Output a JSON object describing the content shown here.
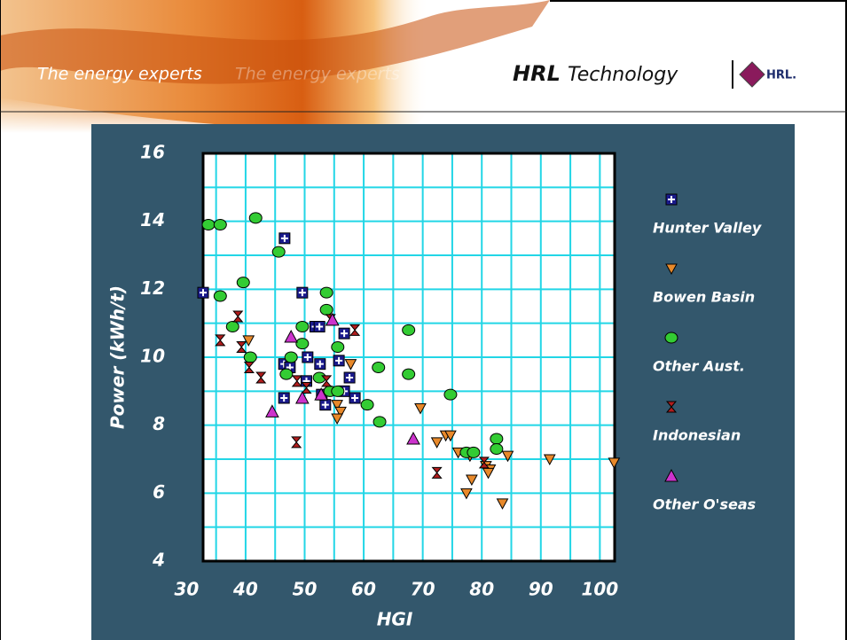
{
  "header": {
    "slogan": "The energy experts",
    "slogan_echo": "The energy experts",
    "brand": "HRL",
    "brand_suffix": "Technology",
    "logo": "HRL."
  },
  "chart_data": {
    "type": "scatter",
    "xlabel": "HGI",
    "ylabel": "Power (kWh/t)",
    "xlim": [
      32.8,
      102.5
    ],
    "ylim": [
      4,
      16
    ],
    "xticks": [
      30,
      40,
      50,
      60,
      70,
      80,
      90,
      100
    ],
    "yticks": [
      4,
      6,
      8,
      10,
      12,
      14,
      16
    ],
    "xgrid": [
      35,
      40,
      45,
      50,
      55,
      60,
      65,
      70,
      75,
      80,
      85,
      90,
      95,
      100
    ],
    "ygrid": [
      5,
      6,
      7,
      8,
      9,
      10,
      11,
      12,
      13,
      14,
      15
    ],
    "legend": "right",
    "series": [
      {
        "name": "Hunter Valley",
        "color": "#1a1a8c",
        "marker": "square",
        "x": [
          32.8,
          46.6,
          49.6,
          51.8,
          52.5,
          56.7,
          46.5,
          47.5,
          50.5,
          52.6,
          55.8,
          57.6,
          50.3,
          46.5,
          53.5,
          56.7,
          58.5,
          52.9
        ],
        "values": [
          11.9,
          13.5,
          11.9,
          10.9,
          10.9,
          10.7,
          9.8,
          9.7,
          10.0,
          9.8,
          9.9,
          9.4,
          9.3,
          8.8,
          8.6,
          9.0,
          8.8,
          8.9
        ]
      },
      {
        "name": "Bowen Basin",
        "color": "#e8892a",
        "marker": "triangle-down",
        "x": [
          40.5,
          69.6,
          72.4,
          73.9,
          74.7,
          76.0,
          78.0,
          78.3,
          77.4,
          80.7,
          81.4,
          81.1,
          84.4,
          83.5,
          91.5,
          102.4,
          55.5,
          56.1,
          55.5,
          57.8
        ],
        "values": [
          10.5,
          8.5,
          7.5,
          7.7,
          7.7,
          7.2,
          7.1,
          6.4,
          6.0,
          6.8,
          6.7,
          6.6,
          7.1,
          5.7,
          7.0,
          6.9,
          8.6,
          8.4,
          8.2,
          9.8
        ]
      },
      {
        "name": "Other Aust.",
        "color": "#33cc33",
        "marker": "circle",
        "x": [
          33.7,
          35.7,
          41.7,
          45.6,
          39.6,
          35.7,
          37.8,
          40.8,
          49.6,
          49.6,
          47.7,
          46.9,
          53.7,
          53.7,
          55.6,
          52.5,
          54.3,
          55.6,
          60.6,
          62.5,
          62.7,
          67.6,
          67.6,
          74.7,
          77.4,
          78.6,
          82.5,
          82.5
        ],
        "values": [
          13.9,
          13.9,
          14.1,
          13.1,
          12.2,
          11.8,
          10.9,
          10.0,
          10.9,
          10.4,
          10.0,
          9.5,
          11.9,
          11.4,
          10.3,
          9.4,
          9.0,
          9.0,
          8.6,
          9.7,
          8.1,
          10.8,
          9.5,
          8.9,
          7.2,
          7.2,
          7.6,
          7.3
        ]
      },
      {
        "name": "Indonesian",
        "color": "#b01c1c",
        "marker": "hourglass",
        "x": [
          35.7,
          38.7,
          39.3,
          40.6,
          42.6,
          48.7,
          53.7,
          58.5,
          48.6,
          72.4,
          80.4,
          54.4,
          50.3
        ],
        "values": [
          10.5,
          11.2,
          10.3,
          9.7,
          9.4,
          9.3,
          9.3,
          10.8,
          7.5,
          6.6,
          6.9,
          11.1,
          9.1
        ]
      },
      {
        "name": "Other O'seas",
        "color": "#cc33cc",
        "marker": "triangle-up",
        "x": [
          44.5,
          47.7,
          49.6,
          52.8,
          54.7,
          68.4
        ],
        "values": [
          8.4,
          10.6,
          8.8,
          8.9,
          11.1,
          7.6
        ]
      }
    ]
  }
}
